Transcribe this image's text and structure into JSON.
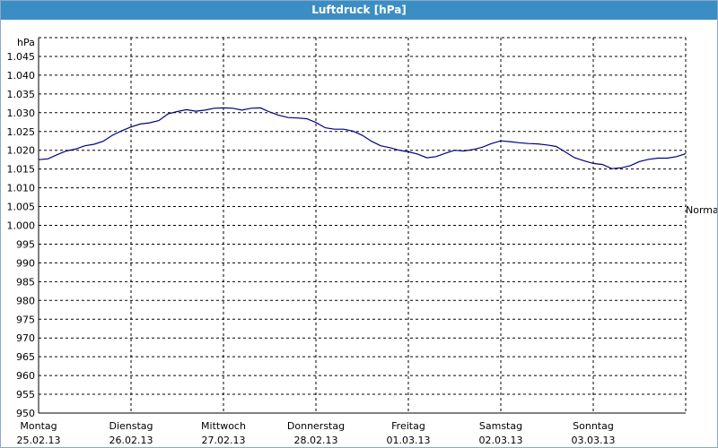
{
  "window": {
    "title": "Luftdruck [hPa]"
  },
  "chart_data": {
    "type": "line",
    "title": "Luftdruck [hPa]",
    "ylabel": "hPa",
    "ylim": [
      950,
      1050
    ],
    "y_ticks": [
      950,
      955,
      960,
      965,
      970,
      975,
      980,
      985,
      990,
      995,
      1000,
      1005,
      1010,
      1015,
      1020,
      1025,
      1030,
      1035,
      1040,
      1045
    ],
    "y_tick_labels": [
      "950",
      "955",
      "960",
      "965",
      "970",
      "975",
      "980",
      "985",
      "990",
      "995",
      "1.000",
      "1.005",
      "1.010",
      "1.015",
      "1.020",
      "1.025",
      "1.030",
      "1.035",
      "1.040",
      "1.045"
    ],
    "x_range_days": [
      0,
      7
    ],
    "x_ticks": [
      {
        "day": "Montag",
        "date": "25.02.13"
      },
      {
        "day": "Dienstag",
        "date": "26.02.13"
      },
      {
        "day": "Mittwoch",
        "date": "27.02.13"
      },
      {
        "day": "Donnerstag",
        "date": "28.02.13"
      },
      {
        "day": "Freitag",
        "date": "01.03.13"
      },
      {
        "day": "Samstag",
        "date": "02.03.13"
      },
      {
        "day": "Sonntag",
        "date": "03.03.13"
      }
    ],
    "reference_line": {
      "label": "Normal",
      "value": 1005
    },
    "grid": true,
    "series": [
      {
        "color": "#000080",
        "x": [
          0,
          0.1,
          0.2,
          0.3,
          0.4,
          0.5,
          0.6,
          0.7,
          0.8,
          0.9,
          1.0,
          1.1,
          1.2,
          1.3,
          1.4,
          1.5,
          1.6,
          1.7,
          1.8,
          1.9,
          2.0,
          2.1,
          2.2,
          2.3,
          2.4,
          2.5,
          2.6,
          2.7,
          2.8,
          2.9,
          3.0,
          3.1,
          3.2,
          3.3,
          3.4,
          3.5,
          3.6,
          3.7,
          3.8,
          3.9,
          4.0,
          4.1,
          4.2,
          4.3,
          4.4,
          4.5,
          4.6,
          4.7,
          4.8,
          4.9,
          5.0,
          5.1,
          5.2,
          5.3,
          5.4,
          5.5,
          5.6,
          5.7,
          5.8,
          5.9,
          6.0,
          6.1,
          6.2,
          6.3,
          6.4,
          6.5,
          6.6,
          6.7,
          6.8,
          6.9,
          7.0
        ],
        "y": [
          1017.5,
          1017.7,
          1018.8,
          1019.8,
          1020.3,
          1021.2,
          1021.6,
          1022.4,
          1024.0,
          1025.2,
          1026.2,
          1027.0,
          1027.3,
          1027.9,
          1029.7,
          1030.3,
          1030.8,
          1030.4,
          1030.7,
          1031.2,
          1031.3,
          1031.2,
          1030.7,
          1031.2,
          1031.3,
          1030.2,
          1029.3,
          1028.7,
          1028.6,
          1028.4,
          1027.4,
          1026.0,
          1025.6,
          1025.6,
          1025.1,
          1024.0,
          1022.4,
          1021.2,
          1020.7,
          1020.0,
          1019.6,
          1019.0,
          1018.0,
          1018.3,
          1019.2,
          1020.0,
          1019.8,
          1020.2,
          1020.8,
          1021.8,
          1022.5,
          1022.3,
          1022.0,
          1021.8,
          1021.7,
          1021.4,
          1021.0,
          1019.5,
          1018.0,
          1017.2,
          1016.5,
          1016.2,
          1015.1,
          1015.3,
          1015.9,
          1017.0,
          1017.6,
          1017.9,
          1017.9,
          1018.3,
          1019.1
        ]
      }
    ]
  }
}
